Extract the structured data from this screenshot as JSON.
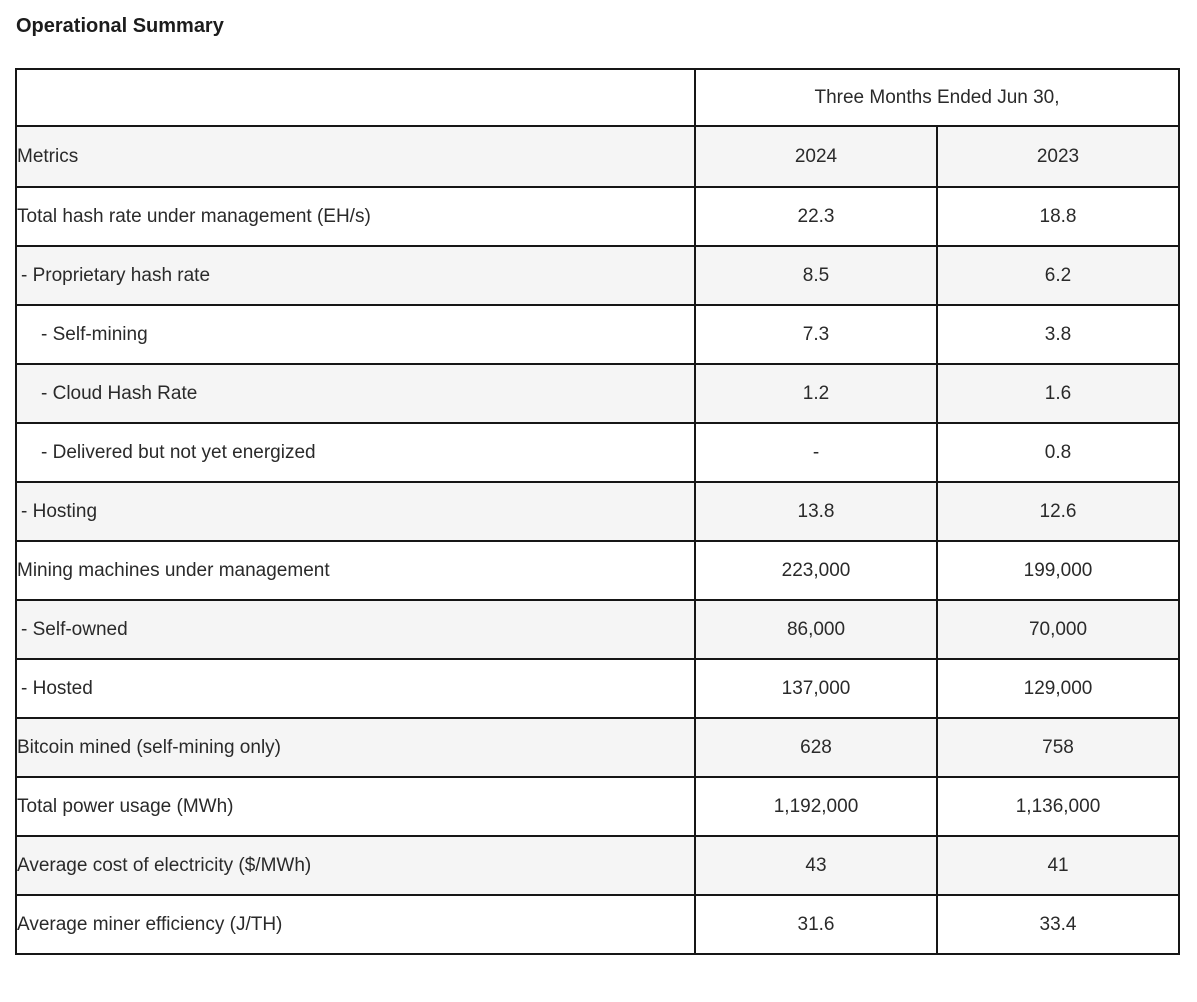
{
  "page_title": "Operational Summary",
  "colors": {
    "border": "#161616",
    "row_alt_bg": "#f5f5f5",
    "text": "#2a2a2a",
    "heading_text": "#1c1c1c"
  },
  "table": {
    "group_header": "Three Months Ended Jun 30,",
    "metrics_header": "Metrics",
    "year_headers": [
      "2024",
      "2023"
    ],
    "rows": [
      {
        "label": "Total hash rate under management (EH/s)",
        "y2024": "22.3",
        "y2023": "18.8"
      },
      {
        "label": "- Proprietary hash rate",
        "y2024": "8.5",
        "y2023": "6.2"
      },
      {
        "label": "- Self-mining",
        "y2024": "7.3",
        "y2023": "3.8"
      },
      {
        "label": "- Cloud Hash Rate",
        "y2024": "1.2",
        "y2023": "1.6"
      },
      {
        "label": "- Delivered but not yet energized",
        "y2024": "-",
        "y2023": "0.8"
      },
      {
        "label": "- Hosting",
        "y2024": "13.8",
        "y2023": "12.6"
      },
      {
        "label": "Mining machines under management",
        "y2024": "223,000",
        "y2023": "199,000"
      },
      {
        "label": "- Self-owned",
        "y2024": "86,000",
        "y2023": "70,000"
      },
      {
        "label": "- Hosted",
        "y2024": "137,000",
        "y2023": "129,000"
      },
      {
        "label": "Bitcoin mined (self-mining only)",
        "y2024": "628",
        "y2023": "758"
      },
      {
        "label": "Total power usage (MWh)",
        "y2024": "1,192,000",
        "y2023": "1,136,000"
      },
      {
        "label": "Average cost of electricity ($/MWh)",
        "y2024": "43",
        "y2023": "41"
      },
      {
        "label": "Average miner efficiency (J/TH)",
        "y2024": "31.6",
        "y2023": "33.4"
      }
    ]
  }
}
